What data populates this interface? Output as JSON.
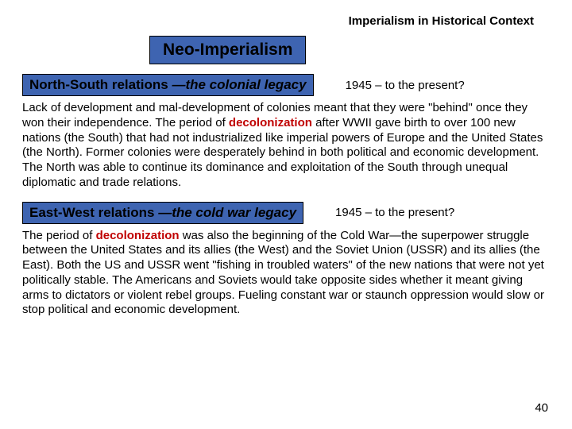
{
  "header": "Imperialism in Historical Context",
  "title": "Neo-Imperialism",
  "section1": {
    "label_bold": "North-South relations",
    "label_italic": "—the colonial legacy",
    "date": "1945 – to the present?",
    "body_pre": "Lack of development and mal-development of colonies meant that they were \"behind\" once they won their independence.  The period of ",
    "keyword": "decolonization",
    "body_post": " after WWII gave birth to over 100 new nations (the South) that had not industrialized like imperial powers of Europe and the United States (the North). Former colonies were desperately behind in both political and economic development.  The North was able to continue its dominance and exploitation of the South through unequal diplomatic and trade relations."
  },
  "section2": {
    "label_bold": "East-West relations",
    "label_italic": "—the cold war legacy",
    "date": "1945 – to the present?",
    "body_pre": "The period of ",
    "keyword": "decolonization",
    "body_post": " was also the beginning of the Cold War—the superpower struggle between the United States and its allies (the West) and the Soviet Union (USSR) and its allies (the East). Both the US and USSR went \"fishing in troubled waters\" of the new nations that were not yet politically stable.  The Americans and Soviets would take opposite sides whether it meant giving arms to dictators or violent rebel groups.  Fueling constant war or staunch oppression would slow or stop political and economic development."
  },
  "page_number": "40",
  "colors": {
    "box_bg": "#3e64b1",
    "keyword": "#c00000",
    "text": "#000000",
    "bg": "#ffffff"
  }
}
